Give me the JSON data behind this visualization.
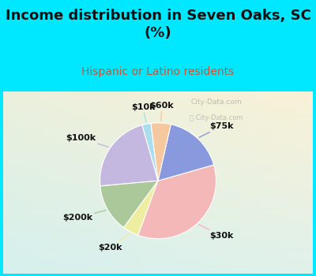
{
  "title": "Income distribution in Seven Oaks, SC\n(%)",
  "subtitle": "Hispanic or Latino residents",
  "labels": [
    "$10k",
    "$100k",
    "$200k",
    "$20k",
    "$30k",
    "$75k",
    "$60k"
  ],
  "sizes": [
    2.5,
    22.0,
    13.5,
    4.5,
    35.0,
    17.0,
    5.5
  ],
  "colors": [
    "#aadded",
    "#c5b8e0",
    "#aac899",
    "#eeeea0",
    "#f5b8b8",
    "#8899dd",
    "#f5c8a0"
  ],
  "background_top": "#00e8ff",
  "title_color": "#111111",
  "subtitle_color": "#cc5533",
  "title_fontsize": 13,
  "subtitle_fontsize": 10,
  "label_fontsize": 8,
  "startangle": 97,
  "watermark": "City-Data.com"
}
